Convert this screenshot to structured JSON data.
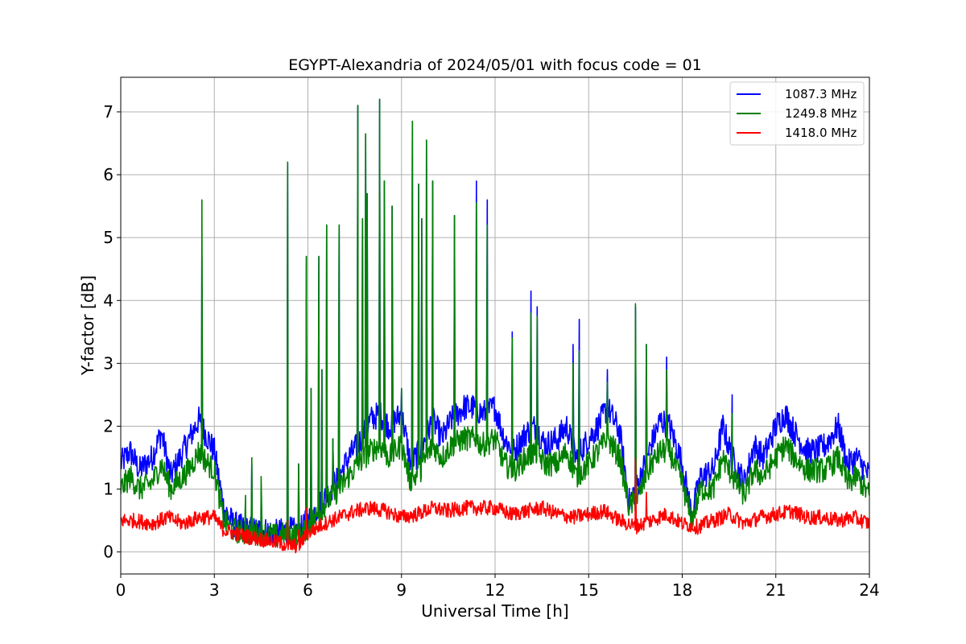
{
  "chart_data": {
    "type": "line",
    "title": "EGYPT-Alexandria of 2024/05/01 with focus code = 01",
    "xlabel": "Universal Time [h]",
    "ylabel": "Y-factor [dB]",
    "xlim": [
      0,
      24
    ],
    "ylim": [
      -0.35,
      7.55
    ],
    "xticks": [
      0,
      3,
      6,
      9,
      12,
      15,
      18,
      21,
      24
    ],
    "yticks": [
      0,
      1,
      2,
      3,
      4,
      5,
      6,
      7
    ],
    "grid": true,
    "legend_position": "top-right",
    "series": [
      {
        "name": "1087.3 MHz",
        "color": "#0000ff",
        "x": [
          0,
          0.3,
          0.6,
          1.0,
          1.3,
          1.6,
          2.0,
          2.3,
          2.5,
          2.8,
          3.0,
          3.3,
          3.6,
          4.0,
          4.5,
          5.0,
          5.4,
          5.7,
          6.0,
          6.3,
          6.6,
          7.0,
          7.3,
          7.6,
          8.0,
          8.3,
          8.6,
          9.0,
          9.3,
          9.6,
          10.0,
          10.3,
          10.6,
          11.0,
          11.3,
          11.6,
          12.0,
          12.3,
          12.6,
          13.0,
          13.3,
          13.6,
          14.0,
          14.3,
          14.6,
          15.0,
          15.3,
          15.6,
          16.0,
          16.3,
          16.6,
          17.0,
          17.3,
          17.6,
          18.0,
          18.3,
          18.6,
          19.0,
          19.3,
          19.6,
          20.0,
          20.3,
          20.6,
          21.0,
          21.3,
          21.6,
          22.0,
          22.3,
          22.6,
          23.0,
          23.3,
          23.6,
          24.0
        ],
        "values": [
          1.4,
          1.6,
          1.3,
          1.5,
          1.9,
          1.2,
          1.6,
          1.9,
          2.1,
          1.8,
          1.6,
          0.7,
          0.45,
          0.35,
          0.35,
          0.3,
          0.35,
          0.3,
          0.5,
          0.7,
          0.9,
          1.2,
          1.5,
          1.7,
          2.1,
          2.2,
          2.0,
          2.2,
          1.4,
          1.6,
          2.1,
          1.8,
          2.1,
          2.3,
          2.3,
          2.2,
          2.3,
          1.8,
          1.6,
          1.9,
          2.0,
          1.7,
          1.8,
          2.0,
          1.5,
          1.8,
          2.0,
          2.3,
          1.9,
          0.8,
          1.1,
          1.7,
          2.1,
          2.0,
          1.4,
          0.6,
          1.2,
          1.3,
          2.0,
          1.5,
          1.1,
          1.7,
          1.5,
          2.0,
          2.2,
          1.9,
          1.6,
          1.6,
          1.7,
          2.0,
          1.4,
          1.5,
          1.2
        ]
      },
      {
        "name": "1249.8 MHz",
        "color": "#008000",
        "x": [
          0,
          0.3,
          0.6,
          1.0,
          1.3,
          1.6,
          2.0,
          2.3,
          2.5,
          2.8,
          3.0,
          3.3,
          3.6,
          4.0,
          4.5,
          5.0,
          5.4,
          5.7,
          6.0,
          6.3,
          6.6,
          7.0,
          7.3,
          7.6,
          8.0,
          8.3,
          8.6,
          9.0,
          9.3,
          9.6,
          10.0,
          10.3,
          10.6,
          11.0,
          11.3,
          11.6,
          12.0,
          12.3,
          12.6,
          13.0,
          13.3,
          13.6,
          14.0,
          14.3,
          14.6,
          15.0,
          15.3,
          15.6,
          16.0,
          16.3,
          16.6,
          17.0,
          17.3,
          17.6,
          18.0,
          18.3,
          18.6,
          19.0,
          19.3,
          19.6,
          20.0,
          20.3,
          20.6,
          21.0,
          21.3,
          21.6,
          22.0,
          22.3,
          22.6,
          23.0,
          23.3,
          23.6,
          24.0
        ],
        "values": [
          1.0,
          1.2,
          1.0,
          1.1,
          1.4,
          1.0,
          1.2,
          1.4,
          1.6,
          1.4,
          1.3,
          0.5,
          0.35,
          0.3,
          0.3,
          0.25,
          0.3,
          0.25,
          0.4,
          0.6,
          0.8,
          1.0,
          1.2,
          1.4,
          1.6,
          1.7,
          1.5,
          1.7,
          1.1,
          1.3,
          1.7,
          1.5,
          1.7,
          1.8,
          1.8,
          1.7,
          1.8,
          1.4,
          1.3,
          1.5,
          1.6,
          1.4,
          1.4,
          1.6,
          1.2,
          1.4,
          1.6,
          1.8,
          1.5,
          0.7,
          0.9,
          1.4,
          1.6,
          1.6,
          1.1,
          0.5,
          1.0,
          1.0,
          1.5,
          1.2,
          0.9,
          1.3,
          1.2,
          1.5,
          1.7,
          1.5,
          1.3,
          1.3,
          1.3,
          1.5,
          1.1,
          1.2,
          0.9
        ]
      },
      {
        "name": "1418.0 MHz",
        "color": "#ff0000",
        "x": [
          0,
          0.5,
          1.0,
          1.5,
          2.0,
          2.5,
          3.0,
          3.3,
          3.6,
          4.0,
          4.5,
          5.0,
          5.4,
          5.7,
          6.0,
          6.5,
          7.0,
          7.5,
          8.0,
          8.5,
          9.0,
          9.5,
          10.0,
          10.5,
          11.0,
          11.5,
          12.0,
          12.5,
          13.0,
          13.5,
          14.0,
          14.5,
          15.0,
          15.5,
          16.0,
          16.5,
          17.0,
          17.5,
          18.0,
          18.5,
          19.0,
          19.5,
          20.0,
          20.5,
          21.0,
          21.5,
          22.0,
          22.5,
          23.0,
          23.5,
          24.0
        ],
        "values": [
          0.5,
          0.5,
          0.45,
          0.55,
          0.45,
          0.55,
          0.55,
          0.35,
          0.3,
          0.25,
          0.2,
          0.15,
          0.1,
          0.1,
          0.3,
          0.45,
          0.55,
          0.65,
          0.7,
          0.65,
          0.55,
          0.6,
          0.7,
          0.65,
          0.7,
          0.7,
          0.7,
          0.6,
          0.65,
          0.7,
          0.6,
          0.55,
          0.6,
          0.65,
          0.5,
          0.4,
          0.5,
          0.6,
          0.45,
          0.4,
          0.5,
          0.6,
          0.45,
          0.55,
          0.6,
          0.65,
          0.55,
          0.55,
          0.5,
          0.55,
          0.45
        ]
      }
    ],
    "spikes": [
      {
        "x": 2.6,
        "values": [
          4.7,
          5.6,
          0
        ]
      },
      {
        "x": 4.0,
        "values": [
          0,
          0.9,
          0
        ]
      },
      {
        "x": 4.2,
        "values": [
          1.4,
          1.5,
          0
        ]
      },
      {
        "x": 4.5,
        "values": [
          1.0,
          1.2,
          0
        ]
      },
      {
        "x": 5.35,
        "values": [
          6.2,
          6.2,
          0.5
        ]
      },
      {
        "x": 5.7,
        "values": [
          1.4,
          1.4,
          0.35
        ]
      },
      {
        "x": 5.95,
        "values": [
          4.7,
          4.7,
          0.7
        ]
      },
      {
        "x": 6.1,
        "values": [
          2.6,
          2.6,
          0
        ]
      },
      {
        "x": 6.35,
        "values": [
          4.7,
          4.7,
          0
        ]
      },
      {
        "x": 6.45,
        "values": [
          2.9,
          2.9,
          0
        ]
      },
      {
        "x": 6.6,
        "values": [
          5.2,
          5.2,
          0
        ]
      },
      {
        "x": 6.8,
        "values": [
          1.8,
          1.8,
          0
        ]
      },
      {
        "x": 7.0,
        "values": [
          5.2,
          5.2,
          0
        ]
      },
      {
        "x": 7.6,
        "values": [
          7.1,
          7.1,
          0
        ]
      },
      {
        "x": 7.75,
        "values": [
          5.3,
          5.3,
          0
        ]
      },
      {
        "x": 7.85,
        "values": [
          6.65,
          6.65,
          0
        ]
      },
      {
        "x": 7.9,
        "values": [
          5.7,
          5.7,
          0
        ]
      },
      {
        "x": 8.3,
        "values": [
          7.2,
          7.2,
          0
        ]
      },
      {
        "x": 8.45,
        "values": [
          5.9,
          5.9,
          0
        ]
      },
      {
        "x": 8.7,
        "values": [
          5.5,
          5.5,
          0
        ]
      },
      {
        "x": 9.0,
        "values": [
          2.6,
          2.6,
          0
        ]
      },
      {
        "x": 9.35,
        "values": [
          6.85,
          6.85,
          0
        ]
      },
      {
        "x": 9.55,
        "values": [
          5.85,
          5.85,
          0
        ]
      },
      {
        "x": 9.65,
        "values": [
          5.3,
          5.3,
          0
        ]
      },
      {
        "x": 9.8,
        "values": [
          6.55,
          6.55,
          0
        ]
      },
      {
        "x": 10.0,
        "values": [
          5.9,
          5.9,
          0
        ]
      },
      {
        "x": 10.7,
        "values": [
          5.35,
          5.35,
          0
        ]
      },
      {
        "x": 11.4,
        "values": [
          5.9,
          5.55,
          0
        ]
      },
      {
        "x": 11.75,
        "values": [
          5.6,
          5.2,
          0
        ]
      },
      {
        "x": 12.55,
        "values": [
          3.5,
          3.4,
          0
        ]
      },
      {
        "x": 13.15,
        "values": [
          4.15,
          3.8,
          0
        ]
      },
      {
        "x": 13.35,
        "values": [
          3.9,
          3.75,
          0
        ]
      },
      {
        "x": 14.5,
        "values": [
          3.3,
          3.0,
          0
        ]
      },
      {
        "x": 14.7,
        "values": [
          3.7,
          3.2,
          0
        ]
      },
      {
        "x": 15.6,
        "values": [
          2.9,
          2.7,
          0
        ]
      },
      {
        "x": 16.5,
        "values": [
          3.9,
          3.95,
          1.5
        ]
      },
      {
        "x": 16.85,
        "values": [
          3.3,
          3.3,
          0.95
        ]
      },
      {
        "x": 17.5,
        "values": [
          3.1,
          2.9,
          0
        ]
      },
      {
        "x": 19.6,
        "values": [
          2.5,
          2.2,
          0
        ]
      }
    ]
  }
}
